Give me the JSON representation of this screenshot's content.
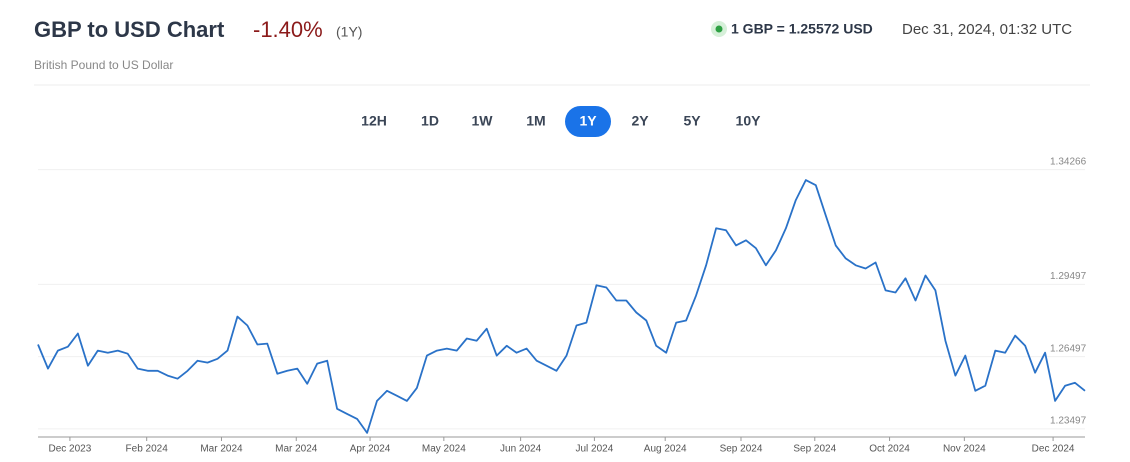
{
  "header": {
    "title": "GBP to USD Chart",
    "change": "-1.40%",
    "period": "(1Y)",
    "subtitle": "British Pound to US Dollar",
    "rate": "1 GBP = 1.25572 USD",
    "timestamp": "Dec 31, 2024, 01:32 UTC"
  },
  "range_buttons": {
    "options": [
      "12H",
      "1D",
      "1W",
      "1M",
      "1Y",
      "2Y",
      "5Y",
      "10Y"
    ],
    "active": 4
  },
  "chart_data": {
    "type": "line",
    "color": "#2a72c8",
    "grid": true,
    "ylim": [
      1.2316,
      1.3479
    ],
    "yticks": [
      1.23497,
      1.26497,
      1.29497,
      1.34266
    ],
    "xlim": [
      0,
      105
    ],
    "xticks": [
      {
        "value": 3.2,
        "label": "Dec 2023"
      },
      {
        "value": 10.9,
        "label": "Feb 2024"
      },
      {
        "value": 18.4,
        "label": "Mar 2024"
      },
      {
        "value": 25.9,
        "label": "Mar 2024"
      },
      {
        "value": 33.3,
        "label": "Apr 2024"
      },
      {
        "value": 40.7,
        "label": "May 2024"
      },
      {
        "value": 48.4,
        "label": "Jun 2024"
      },
      {
        "value": 55.8,
        "label": "Jul 2024"
      },
      {
        "value": 62.9,
        "label": "Aug 2024"
      },
      {
        "value": 70.5,
        "label": "Sep 2024"
      },
      {
        "value": 77.9,
        "label": "Sep 2024"
      },
      {
        "value": 85.4,
        "label": "Oct 2024"
      },
      {
        "value": 92.9,
        "label": "Nov 2024"
      },
      {
        "value": 101.8,
        "label": "Dec 2024"
      }
    ],
    "values": [
      1.27,
      1.26,
      1.2675,
      1.2691,
      1.2746,
      1.2612,
      1.2675,
      1.2666,
      1.2675,
      1.2662,
      1.26,
      1.2591,
      1.2591,
      1.2571,
      1.2558,
      1.2591,
      1.2633,
      1.2625,
      1.2641,
      1.2675,
      1.2816,
      1.2779,
      1.27,
      1.2704,
      1.2579,
      1.2591,
      1.26,
      1.2537,
      1.2621,
      1.2633,
      1.2433,
      1.2412,
      1.2391,
      1.2333,
      1.2466,
      1.2508,
      1.2487,
      1.2466,
      1.252,
      1.2654,
      1.2675,
      1.2683,
      1.2675,
      1.2725,
      1.2716,
      1.2766,
      1.2654,
      1.2695,
      1.2666,
      1.2683,
      1.2633,
      1.2612,
      1.2591,
      1.2654,
      1.2779,
      1.2791,
      1.2946,
      1.2937,
      1.2883,
      1.2883,
      1.2833,
      1.28,
      1.2695,
      1.2666,
      1.2791,
      1.28,
      1.2904,
      1.3029,
      1.3183,
      1.3175,
      1.3112,
      1.3133,
      1.31,
      1.3029,
      1.3091,
      1.3183,
      1.33,
      1.3383,
      1.3362,
      1.3237,
      1.3112,
      1.3058,
      1.3029,
      1.3016,
      1.3041,
      1.2925,
      1.2916,
      1.2975,
      1.2883,
      1.2987,
      1.2925,
      1.2716,
      1.2571,
      1.2654,
      1.2508,
      1.2529,
      1.2675,
      1.2666,
      1.2737,
      1.2695,
      1.2583,
      1.2666,
      1.2466,
      1.2529,
      1.2541,
      1.2508
    ]
  }
}
